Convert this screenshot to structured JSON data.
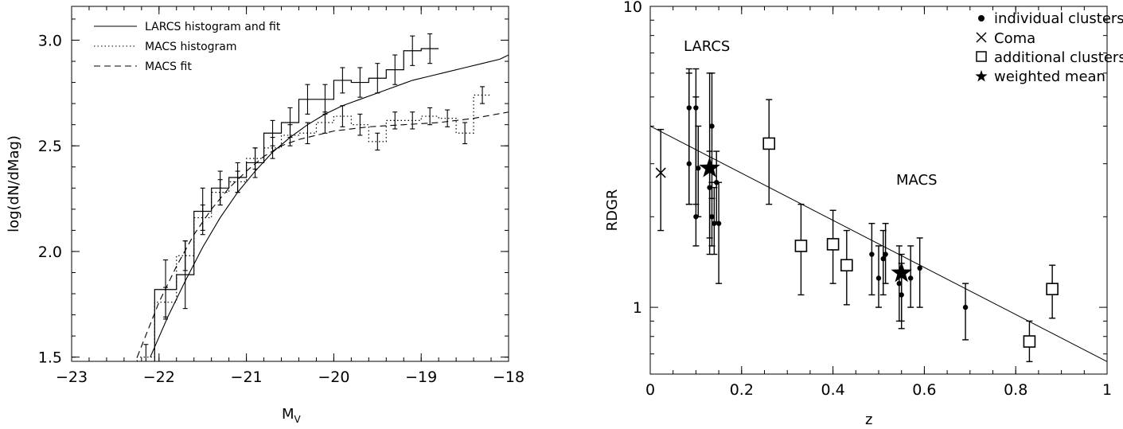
{
  "chart_data": [
    {
      "type": "line",
      "xlabel": "M",
      "xlabel_sub": "V",
      "ylabel": "log(dN/dMag)",
      "xlim": [
        -23,
        -18
      ],
      "ylim": [
        1.48,
        3.16
      ],
      "xticks": [
        -23,
        -22,
        -21,
        -20,
        -19,
        -18
      ],
      "xtick_labels": [
        "−23",
        "−22",
        "−21",
        "−20",
        "−19",
        "−18"
      ],
      "yticks": [
        1.5,
        2.0,
        2.5,
        3.0
      ],
      "ytick_labels": [
        "1.5",
        "2.0",
        "2.5",
        "3.0"
      ],
      "legend": [
        "LARCS histogram and fit",
        "MACS histogram",
        "MACS fit"
      ],
      "legend_position": "top-left",
      "grid": false,
      "bin_edges": [
        -22.25,
        -22.05,
        -21.8,
        -21.6,
        -21.4,
        -21.2,
        -21.0,
        -20.8,
        -20.6,
        -20.4,
        -20.2,
        -20.0,
        -19.8,
        -19.6,
        -19.4,
        -19.2,
        -19.0,
        -18.8,
        -18.6,
        -18.4,
        -18.2,
        -18.0
      ],
      "larcs_histogram": {
        "name": "LARCS histogram and fit",
        "values": [
          1.82,
          1.89,
          2.19,
          2.3,
          2.35,
          2.42,
          2.56,
          2.61,
          2.72,
          2.72,
          2.81,
          2.8,
          2.82,
          2.86,
          2.95,
          2.96
        ],
        "start_bin": 1,
        "errors": [
          0.14,
          0.16,
          0.11,
          0.08,
          0.07,
          0.07,
          0.06,
          0.07,
          0.07,
          0.07,
          0.06,
          0.07,
          0.07,
          0.07,
          0.07,
          0.07
        ]
      },
      "macs_histogram": {
        "name": "MACS histogram",
        "values": [
          1.5,
          1.76,
          1.98,
          2.16,
          2.28,
          2.33,
          2.44,
          2.49,
          2.55,
          2.56,
          2.61,
          2.64,
          2.6,
          2.52,
          2.62,
          2.62,
          2.64,
          2.63,
          2.56,
          2.74
        ],
        "start_bin": 0,
        "errors": [
          0.06,
          0.07,
          0.07,
          0.06,
          0.06,
          0.05,
          0.05,
          0.05,
          0.05,
          0.05,
          0.05,
          0.05,
          0.05,
          0.04,
          0.04,
          0.04,
          0.04,
          0.04,
          0.05,
          0.04
        ]
      },
      "larcs_fit": {
        "name": "LARCS histogram and fit",
        "x": [
          -22.1,
          -21.9,
          -21.7,
          -21.5,
          -21.3,
          -21.1,
          -20.9,
          -20.7,
          -20.5,
          -20.3,
          -20.1,
          -19.9,
          -19.7,
          -19.5,
          -19.3,
          -19.1,
          -18.9,
          -18.7,
          -18.5,
          -18.3,
          -18.1,
          -18.0
        ],
        "y": [
          1.5,
          1.69,
          1.86,
          2.02,
          2.16,
          2.28,
          2.38,
          2.47,
          2.54,
          2.6,
          2.65,
          2.69,
          2.72,
          2.75,
          2.78,
          2.81,
          2.83,
          2.85,
          2.87,
          2.89,
          2.91,
          2.93
        ]
      },
      "macs_fit": {
        "name": "MACS fit",
        "x": [
          -22.25,
          -22.0,
          -21.8,
          -21.6,
          -21.4,
          -21.2,
          -21.0,
          -20.8,
          -20.6,
          -20.4,
          -20.2,
          -20.0,
          -19.6,
          -19.2,
          -18.8,
          -18.4,
          -18.0
        ],
        "y": [
          1.5,
          1.76,
          1.93,
          2.08,
          2.2,
          2.3,
          2.38,
          2.45,
          2.5,
          2.53,
          2.55,
          2.57,
          2.59,
          2.6,
          2.61,
          2.63,
          2.66
        ]
      }
    },
    {
      "type": "scatter",
      "xlabel": "z",
      "ylabel": "RDGR",
      "xlim": [
        0,
        1
      ],
      "ylim": [
        0.6,
        10
      ],
      "yscale": "log",
      "xticks": [
        0,
        0.2,
        0.4,
        0.6,
        0.8,
        1
      ],
      "xtick_labels": [
        "0",
        "0.2",
        "0.4",
        "0.6",
        "0.8",
        "1"
      ],
      "ytick_labels": [
        "1",
        "10"
      ],
      "legend": [
        "individual clusters",
        "Coma",
        "additional clusters",
        "weighted mean"
      ],
      "legend_position": "top-right",
      "annotations": [
        "LARCS",
        "MACS"
      ],
      "grid": false,
      "individual_clusters": [
        {
          "z": 0.085,
          "y": 4.6,
          "lo": 2.2,
          "hi": 6.2
        },
        {
          "z": 0.085,
          "y": 3.0,
          "lo": 2.2,
          "hi": 6.0
        },
        {
          "z": 0.1,
          "y": 4.6,
          "lo": 2.2,
          "hi": 6.2
        },
        {
          "z": 0.1,
          "y": 2.0,
          "lo": 1.6,
          "hi": 5.0
        },
        {
          "z": 0.105,
          "y": 2.9,
          "lo": 2.0,
          "hi": 4.0
        },
        {
          "z": 0.135,
          "y": 4.0,
          "lo": 2.3,
          "hi": 6.0
        },
        {
          "z": 0.13,
          "y": 2.5,
          "lo": 1.7,
          "hi": 3.3
        },
        {
          "z": 0.135,
          "y": 2.0,
          "lo": 1.6,
          "hi": 2.6
        },
        {
          "z": 0.14,
          "y": 1.9,
          "lo": 1.5,
          "hi": 2.5
        },
        {
          "z": 0.145,
          "y": 2.6,
          "lo": 1.9,
          "hi": 3.3
        },
        {
          "z": 0.15,
          "y": 1.9,
          "lo": 1.2,
          "hi": 2.6
        },
        {
          "z": 0.485,
          "y": 1.5,
          "lo": 1.1,
          "hi": 1.9
        },
        {
          "z": 0.5,
          "y": 1.25,
          "lo": 1.0,
          "hi": 1.6
        },
        {
          "z": 0.51,
          "y": 1.45,
          "lo": 1.1,
          "hi": 1.8
        },
        {
          "z": 0.515,
          "y": 1.5,
          "lo": 1.2,
          "hi": 1.9
        },
        {
          "z": 0.545,
          "y": 1.2,
          "lo": 0.9,
          "hi": 1.6
        },
        {
          "z": 0.55,
          "y": 1.1,
          "lo": 0.9,
          "hi": 1.4
        },
        {
          "z": 0.57,
          "y": 1.25,
          "lo": 1.0,
          "hi": 1.6
        },
        {
          "z": 0.59,
          "y": 1.35,
          "lo": 1.0,
          "hi": 1.7
        },
        {
          "z": 0.69,
          "y": 1.0,
          "lo": 0.78,
          "hi": 1.2
        }
      ],
      "coma": {
        "z": 0.023,
        "y": 2.8,
        "lo": 1.8,
        "hi": 3.9
      },
      "additional_clusters": [
        {
          "z": 0.26,
          "y": 3.5,
          "lo": 2.2,
          "hi": 4.9
        },
        {
          "z": 0.33,
          "y": 1.6,
          "lo": 1.1,
          "hi": 2.2
        },
        {
          "z": 0.4,
          "y": 1.62,
          "lo": 1.2,
          "hi": 2.1
        },
        {
          "z": 0.43,
          "y": 1.38,
          "lo": 1.02,
          "hi": 1.8
        },
        {
          "z": 0.83,
          "y": 0.77,
          "lo": 0.66,
          "hi": 0.9
        },
        {
          "z": 0.88,
          "y": 1.15,
          "lo": 0.92,
          "hi": 1.38
        }
      ],
      "weighted_mean": [
        {
          "z": 0.13,
          "y": 2.9,
          "lo": 1.5,
          "hi": 6.0
        },
        {
          "z": 0.55,
          "y": 1.3,
          "lo": 0.85,
          "hi": 1.5
        }
      ],
      "fit_line": {
        "x": [
          0,
          1
        ],
        "y": [
          4.0,
          0.66
        ]
      }
    }
  ]
}
